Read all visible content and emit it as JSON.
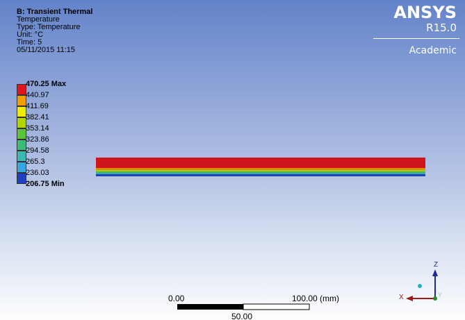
{
  "header": {
    "title": "B: Transient Thermal",
    "lines": [
      "Temperature",
      "Type: Temperature",
      "Unit: °C",
      "Time: 5",
      "05/11/2015 11:15"
    ]
  },
  "logo": {
    "brand": "ANSYS",
    "version": "R15.0",
    "edition": "Academic"
  },
  "legend": {
    "labels": [
      "470.25 Max",
      "440.97",
      "411.69",
      "382.41",
      "353.14",
      "323.86",
      "294.58",
      "265.3",
      "236.03",
      "206.75 Min"
    ],
    "colors": [
      "#e0141c",
      "#f2a000",
      "#f0ec00",
      "#b2d400",
      "#5cc23a",
      "#3cba78",
      "#3cb8b0",
      "#38a6e0",
      "#2040c0"
    ]
  },
  "scale_bar": {
    "start": "0.00",
    "end": "100.00 (mm)",
    "middle": "50.00"
  },
  "triad": {
    "z": "Z",
    "x": "X",
    "y": "Y"
  }
}
